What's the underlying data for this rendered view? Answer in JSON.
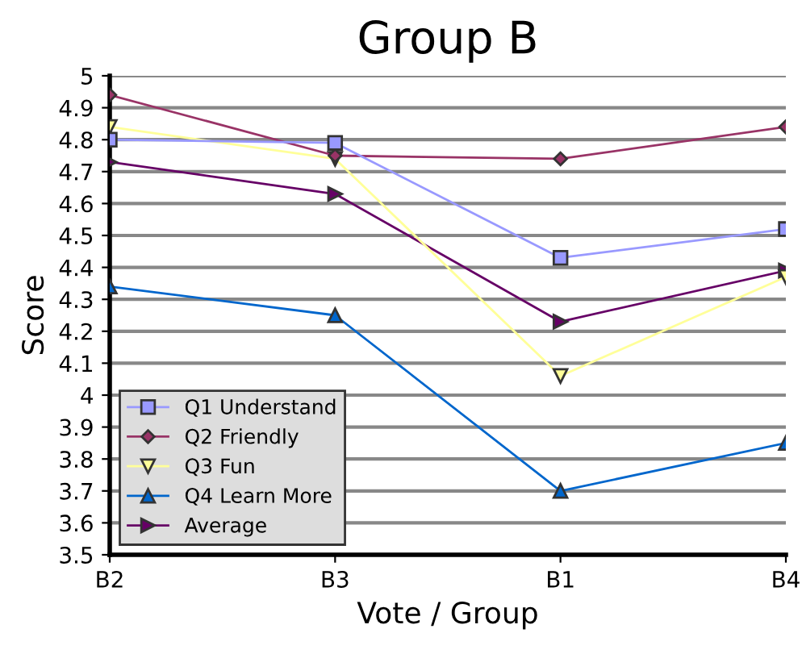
{
  "chart_data": {
    "type": "line",
    "title": "Group B",
    "xlabel": "Vote / Group",
    "ylabel": "Score",
    "categories": [
      "B2",
      "B3",
      "B1",
      "B4"
    ],
    "series": [
      {
        "name": "Q1 Understand",
        "color": "#9999ff",
        "marker": "square",
        "values": [
          4.8,
          4.79,
          4.43,
          4.52
        ]
      },
      {
        "name": "Q2 Friendly",
        "color": "#993366",
        "marker": "diamond",
        "values": [
          4.94,
          4.75,
          4.74,
          4.84
        ]
      },
      {
        "name": "Q3 Fun",
        "color": "#ffff99",
        "marker": "triangle_down",
        "values": [
          4.84,
          4.74,
          4.06,
          4.37
        ]
      },
      {
        "name": "Q4 Learn More",
        "color": "#0066cc",
        "marker": "triangle",
        "values": [
          4.34,
          4.25,
          3.7,
          3.85
        ]
      },
      {
        "name": "Average",
        "color": "#660066",
        "marker": "triangle_right",
        "values": [
          4.73,
          4.63,
          4.23,
          4.39
        ]
      }
    ],
    "ylim": [
      3.5,
      5
    ],
    "yticks": [
      3.5,
      3.6,
      3.7,
      3.8,
      3.9,
      4,
      4.1,
      4.2,
      4.3,
      4.4,
      4.5,
      4.6,
      4.7,
      4.8,
      4.9,
      5
    ],
    "grid": "y",
    "legend": "bottom left"
  }
}
